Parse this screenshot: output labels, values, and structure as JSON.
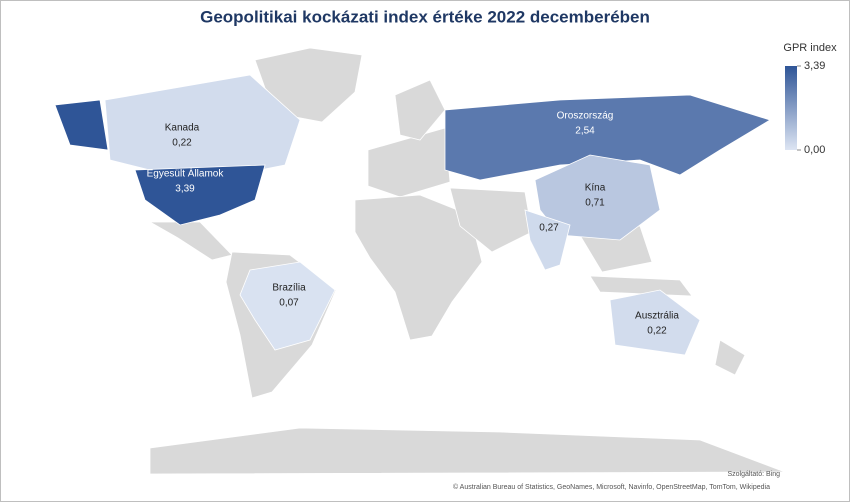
{
  "chart_data": {
    "type": "map",
    "title": "Geopolitikai kockázati index értéke 2022 decemberében",
    "legend_title": "GPR index",
    "colorscale": {
      "low": "#dde5f3",
      "high": "#2f5597"
    },
    "legend_ticks": [
      {
        "value": 3.39,
        "label": "3,39"
      },
      {
        "value": 0,
        "label": "0,00"
      }
    ],
    "categories": [
      "Kanada",
      "Egyesült Államok",
      "Oroszország",
      "Kína",
      null,
      "Brazília",
      "Ausztrália"
    ],
    "values": [
      0.22,
      3.39,
      2.54,
      0.71,
      0.27,
      0.07,
      0.22
    ],
    "value_labels": [
      "0,22",
      "3,39",
      "2,54",
      "0,71",
      "0,27",
      "0,07",
      "0,22"
    ],
    "attribution": [
      "Szolgáltató: Bing",
      "© Australian Bureau of Statistics, GeoNames, Microsoft, Navinfo, OpenStreetMap, TomTom, Wikipedia"
    ]
  }
}
